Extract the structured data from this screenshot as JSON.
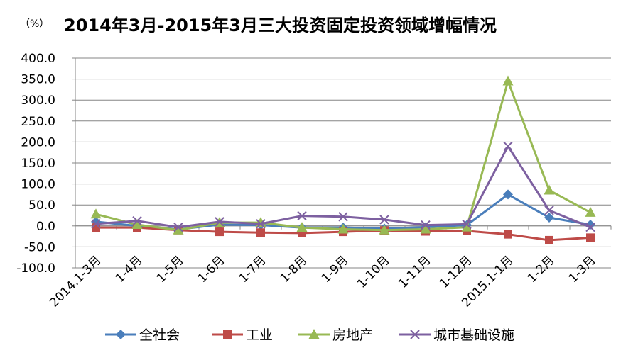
{
  "chart_data": {
    "type": "line",
    "title": "2014年3月-2015年3月三大投资固定投资领域增幅情况",
    "unit": "（%）",
    "categories": [
      "2014.1-3月",
      "1-4月",
      "1-5月",
      "1-6月",
      "1-7月",
      "1-8月",
      "1-9月",
      "1-10月",
      "1-11月",
      "1-12月",
      "2015.1-1月",
      "1-2月",
      "1-3月"
    ],
    "ylim": [
      -100,
      400
    ],
    "yticks": [
      "400.0",
      "350.0",
      "300.0",
      "250.0",
      "200.0",
      "150.0",
      "100.0",
      "50.0",
      "0.0",
      "-50.0",
      "-100.0"
    ],
    "ytick_values": [
      400,
      350,
      300,
      250,
      200,
      150,
      100,
      50,
      0,
      -50,
      -100
    ],
    "grid": true,
    "legend_position": "bottom",
    "series": [
      {
        "name": "全社会",
        "color": "#4a7ebb",
        "marker": "diamond",
        "values": [
          10,
          0,
          -8,
          3,
          2,
          -4,
          -4,
          -6,
          -3,
          2,
          75,
          20,
          3
        ]
      },
      {
        "name": "工业",
        "color": "#be4b48",
        "marker": "square",
        "values": [
          -4,
          -4,
          -10,
          -14,
          -16,
          -17,
          -14,
          -11,
          -13,
          -12,
          -20,
          -34,
          -28
        ]
      },
      {
        "name": "房地产",
        "color": "#98b954",
        "marker": "triangle",
        "values": [
          28,
          3,
          -10,
          8,
          8,
          -4,
          -8,
          -10,
          -8,
          -3,
          345,
          85,
          32
        ]
      },
      {
        "name": "城市基础设施",
        "color": "#7d60a0",
        "marker": "x",
        "values": [
          5,
          12,
          -3,
          10,
          5,
          24,
          22,
          15,
          2,
          4,
          190,
          37,
          -3
        ]
      }
    ]
  }
}
